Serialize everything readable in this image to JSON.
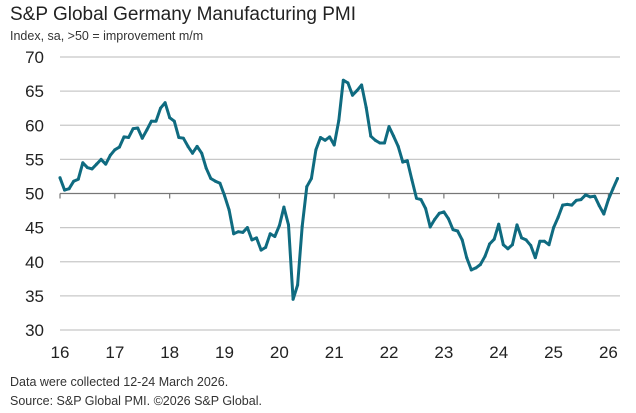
{
  "chart_data": {
    "type": "line",
    "title": "S&P Global Germany Manufacturing PMI",
    "subtitle": "Index, sa, >50 = improvement m/m",
    "xlabel": "",
    "ylabel": "",
    "ylim": [
      30,
      70
    ],
    "yticks": [
      "30",
      "35",
      "40",
      "45",
      "50",
      "55",
      "60",
      "65",
      "70"
    ],
    "xticks": [
      "16",
      "17",
      "18",
      "19",
      "20",
      "21",
      "22",
      "23",
      "24",
      "25",
      "26"
    ],
    "grid": true,
    "x_start": "2016-01",
    "x_end": "2026-03",
    "frequency": "monthly",
    "line_color": "#0f6b80",
    "series": [
      {
        "values": [
          52.3,
          50.5,
          50.7,
          51.8,
          52.1,
          54.5,
          53.8,
          53.6,
          54.3,
          55.0,
          54.3,
          55.6,
          56.4,
          56.8,
          58.3,
          58.2,
          59.5,
          59.6,
          58.1,
          59.3,
          60.6,
          60.6,
          62.5,
          63.3,
          61.1,
          60.6,
          58.2,
          58.1,
          56.9,
          55.9,
          56.9,
          55.9,
          53.7,
          52.2,
          51.8,
          51.5,
          49.7,
          47.6,
          44.1,
          44.4,
          44.3,
          45.0,
          43.2,
          43.5,
          41.7,
          42.1,
          44.1,
          43.7,
          45.3,
          48.0,
          45.4,
          34.5,
          36.6,
          45.2,
          51.0,
          52.2,
          56.4,
          58.2,
          57.8,
          58.3,
          57.1,
          60.7,
          66.6,
          66.2,
          64.4,
          65.1,
          65.9,
          62.6,
          58.4,
          57.8,
          57.4,
          57.4,
          59.8,
          58.4,
          56.9,
          54.6,
          54.8,
          52.0,
          49.3,
          49.1,
          47.8,
          45.1,
          46.2,
          47.1,
          47.3,
          46.3,
          44.7,
          44.5,
          43.2,
          40.6,
          38.8,
          39.1,
          39.6,
          40.8,
          42.6,
          43.3,
          45.5,
          42.5,
          41.9,
          42.5,
          45.4,
          43.5,
          43.2,
          42.4,
          40.6,
          43.0,
          43.0,
          42.5,
          45.0,
          46.5,
          48.3,
          48.4,
          48.3,
          49.0,
          49.1,
          49.8,
          49.5,
          49.6,
          48.2,
          47.0,
          49.1,
          50.7,
          52.2
        ]
      }
    ]
  },
  "notes": {
    "collected": "Data were collected 12-24 March 2026.",
    "source": "Source: S&P Global PMI. ©2026 S&P Global."
  }
}
